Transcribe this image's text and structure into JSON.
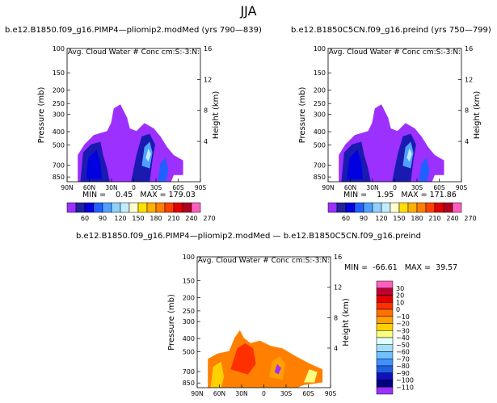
{
  "season": "JJA",
  "panels": [
    {
      "id": "p1",
      "case": "b.e12.B1850.f09_g16.PIMP4—pliomip2.modMed (yrs 790—839)",
      "subtitle": "Avg. Cloud Water # Conc",
      "units": "cm:S:-3:N:",
      "ylabel": "Pressure (mb)",
      "ylabel_right": "Height (km)",
      "pressure_ticks": [
        "100",
        "150",
        "200",
        "250",
        "300",
        "400",
        "500",
        "700",
        "850"
      ],
      "height_ticks": [
        "16",
        "12",
        "8",
        "4"
      ],
      "lat_ticks": [
        "90N",
        "60N",
        "30N",
        "0",
        "30S",
        "60S",
        "90S"
      ],
      "stats": "MIN =    0.45   MAX = 179.03"
    },
    {
      "id": "p2",
      "case": "b.e12.B1850C5CN.f09_g16.preind (yrs 750—799)",
      "subtitle": "Avg. Cloud Water # Conc",
      "units": "cm:S:-3:N:",
      "ylabel": "Pressure (mb)",
      "ylabel_right": "Height (km)",
      "pressure_ticks": [
        "100",
        "150",
        "200",
        "250",
        "300",
        "400",
        "500",
        "700",
        "850"
      ],
      "height_ticks": [
        "16",
        "12",
        "8",
        "4"
      ],
      "lat_ticks": [
        "90N",
        "60N",
        "30N",
        "0",
        "30S",
        "60S",
        "90S"
      ],
      "stats": "MIN =    1.95   MAX = 171.86"
    },
    {
      "id": "p3",
      "case": "b.e12.B1850.f09_g16.PIMP4—pliomip2.modMed — b.e12.B1850C5CN.f09_g16.preind",
      "subtitle": "Avg. Cloud Water # Conc",
      "units": "cm:S:-3:N:",
      "ylabel": "Pressure (mb)",
      "ylabel_right": "Height (km)",
      "pressure_ticks": [
        "100",
        "150",
        "200",
        "250",
        "300",
        "400",
        "500",
        "700",
        "850"
      ],
      "height_ticks": [
        "16",
        "12",
        "8",
        "4"
      ],
      "lat_ticks": [
        "90N",
        "60N",
        "30N",
        "0",
        "30S",
        "60S",
        "90S"
      ],
      "stats": "MIN =  -66.61   MAX =  39.57"
    }
  ],
  "colorbar_top": {
    "labels": [
      "60",
      "90",
      "120",
      "150",
      "180",
      "210",
      "240",
      "270"
    ],
    "colors": [
      "#9b30ff",
      "#2020a0",
      "#0000e0",
      "#2060ff",
      "#50a0ff",
      "#90d0ff",
      "#c0ecff",
      "#ffffd0",
      "#ffe000",
      "#ffb000",
      "#ff8000",
      "#ff4000",
      "#e00000",
      "#b00020",
      "#ff60c0"
    ]
  },
  "colorbar_diff": {
    "labels": [
      "30",
      "20",
      "10",
      "0",
      "−10",
      "−20",
      "−30",
      "−40",
      "−50",
      "−60",
      "−70",
      "−80",
      "−90",
      "−100",
      "−110"
    ],
    "colors": [
      "#ff60c0",
      "#c00030",
      "#e00000",
      "#ff3000",
      "#ff7000",
      "#ffa000",
      "#ffd000",
      "#ffff80",
      "#e0ffff",
      "#a0e0ff",
      "#70c0ff",
      "#4090ff",
      "#2060e0",
      "#1010c0",
      "#000080",
      "#9b30ff"
    ]
  },
  "chart_data": [
    {
      "type": "heatmap",
      "title": "b.e12.B1850.f09_g16.PIMP4—pliomip2.modMed (yrs 790—839)",
      "subtitle": "Avg. Cloud Water # Conc",
      "units": "cm:S:-3:N:",
      "ylabel": "Pressure (mb)",
      "ylabel_right": "Height (km)",
      "x_ticks": [
        "90N",
        "60N",
        "30N",
        "0",
        "30S",
        "60S",
        "90S"
      ],
      "y_ticks_pressure": [
        100,
        150,
        200,
        250,
        300,
        400,
        500,
        700,
        850
      ],
      "y_ticks_height_km": [
        16,
        12,
        8,
        4
      ],
      "min": 0.45,
      "max": 179.03,
      "colorbar_levels": [
        60,
        90,
        120,
        150,
        180,
        210,
        240,
        270
      ]
    },
    {
      "type": "heatmap",
      "title": "b.e12.B1850C5CN.f09_g16.preind (yrs 750—799)",
      "subtitle": "Avg. Cloud Water # Conc",
      "units": "cm:S:-3:N:",
      "ylabel": "Pressure (mb)",
      "ylabel_right": "Height (km)",
      "x_ticks": [
        "90N",
        "60N",
        "30N",
        "0",
        "30S",
        "60S",
        "90S"
      ],
      "y_ticks_pressure": [
        100,
        150,
        200,
        250,
        300,
        400,
        500,
        700,
        850
      ],
      "y_ticks_height_km": [
        16,
        12,
        8,
        4
      ],
      "min": 1.95,
      "max": 171.86,
      "colorbar_levels": [
        60,
        90,
        120,
        150,
        180,
        210,
        240,
        270
      ]
    },
    {
      "type": "heatmap",
      "title": "b.e12.B1850.f09_g16.PIMP4—pliomip2.modMed — b.e12.B1850C5CN.f09_g16.preind",
      "subtitle": "Avg. Cloud Water # Conc",
      "units": "cm:S:-3:N:",
      "ylabel": "Pressure (mb)",
      "ylabel_right": "Height (km)",
      "x_ticks": [
        "90N",
        "60N",
        "30N",
        "0",
        "30S",
        "60S",
        "90S"
      ],
      "y_ticks_pressure": [
        100,
        150,
        200,
        250,
        300,
        400,
        500,
        700,
        850
      ],
      "y_ticks_height_km": [
        16,
        12,
        8,
        4
      ],
      "min": -66.61,
      "max": 39.57,
      "colorbar_levels": [
        30,
        20,
        10,
        0,
        -10,
        -20,
        -30,
        -40,
        -50,
        -60,
        -70,
        -80,
        -90,
        -100,
        -110
      ]
    }
  ]
}
